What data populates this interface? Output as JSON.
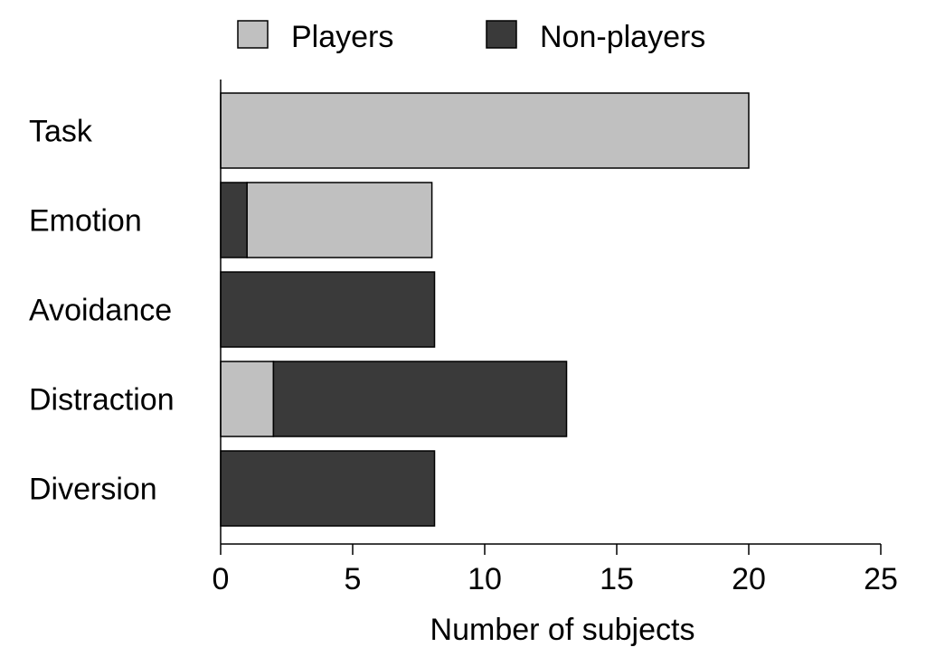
{
  "chart_data": {
    "type": "bar",
    "orientation": "horizontal",
    "stacked": true,
    "categories": [
      "Task",
      "Emotion",
      "Avoidance",
      "Distraction",
      "Diversion"
    ],
    "series": [
      {
        "name": "Players",
        "color": "#c0c0c0",
        "values": [
          20,
          7,
          0,
          2,
          0
        ]
      },
      {
        "name": "Non-players",
        "color": "#3a3a3a",
        "values": [
          0,
          1,
          8.1,
          11.1,
          8.1
        ]
      }
    ],
    "segment_order": [
      [
        "Players",
        "Non-players"
      ],
      [
        "Non-players",
        "Players"
      ],
      [
        "Non-players",
        "Players"
      ],
      [
        "Players",
        "Non-players"
      ],
      [
        "Non-players",
        "Players"
      ]
    ],
    "title": "",
    "xlabel": "Number of subjects",
    "ylabel": "",
    "xlim": [
      0,
      25
    ],
    "xticks": [
      0,
      5,
      10,
      15,
      20,
      25
    ],
    "grid": false,
    "legend_position": "top"
  }
}
